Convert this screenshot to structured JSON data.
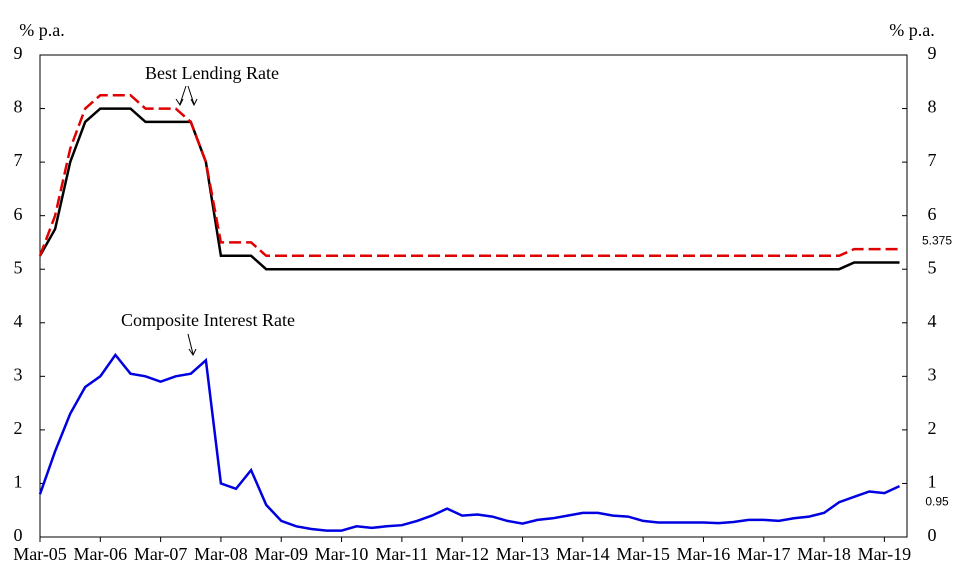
{
  "chart_data": {
    "type": "line",
    "annotations": [
      "Best Lending Rate",
      "Composite Interest Rate"
    ],
    "y_label": "% p.a.",
    "y2_label": "% p.a.",
    "categories": [
      "Mar-05",
      null,
      null,
      null,
      "Mar-06",
      null,
      null,
      null,
      "Mar-07",
      null,
      null,
      null,
      "Mar-08",
      null,
      null,
      null,
      "Mar-09",
      null,
      null,
      null,
      "Mar-10",
      null,
      null,
      null,
      "Mar-11",
      null,
      null,
      null,
      "Mar-12",
      null,
      null,
      null,
      "Mar-13",
      null,
      null,
      null,
      "Mar-14",
      null,
      null,
      null,
      "Mar-15",
      null,
      null,
      null,
      "Mar-16",
      null,
      null,
      null,
      "Mar-17",
      null,
      null,
      null,
      "Mar-18",
      null,
      null,
      null,
      "Mar-19",
      null
    ],
    "ylim": [
      0,
      9
    ],
    "yticks": [
      0,
      1,
      2,
      3,
      4,
      5,
      6,
      7,
      8,
      9
    ],
    "y2lim": [
      0,
      9
    ],
    "y2ticks": [
      0,
      1,
      2,
      3,
      4,
      5,
      6,
      7,
      8,
      9
    ],
    "series": [
      {
        "color": "#000000",
        "dashed": false,
        "label_last": false,
        "values": [
          5.25,
          5.75,
          7.0,
          7.75,
          8,
          8,
          8,
          7.75,
          7.75,
          7.75,
          7.75,
          7.0,
          5.25,
          5.25,
          5.25,
          5,
          5,
          5,
          5,
          5,
          5,
          5,
          5,
          5,
          5,
          5,
          5,
          5,
          5,
          5,
          5,
          5,
          5,
          5,
          5,
          5,
          5,
          5,
          5,
          5,
          5,
          5,
          5,
          5,
          5,
          5,
          5,
          5,
          5,
          5,
          5,
          5,
          5,
          5,
          5.125,
          5.125,
          5.125,
          5.125
        ]
      },
      {
        "color": "#e00000",
        "dashed": true,
        "label_last": true,
        "values": [
          5.25,
          6,
          7.25,
          8,
          8.25,
          8.25,
          8.25,
          8,
          8,
          8,
          7.75,
          7,
          5.5,
          5.5,
          5.5,
          5.25,
          5.25,
          5.25,
          5.25,
          5.25,
          5.25,
          5.25,
          5.25,
          5.25,
          5.25,
          5.25,
          5.25,
          5.25,
          5.25,
          5.25,
          5.25,
          5.25,
          5.25,
          5.25,
          5.25,
          5.25,
          5.25,
          5.25,
          5.25,
          5.25,
          5.25,
          5.25,
          5.25,
          5.25,
          5.25,
          5.25,
          5.25,
          5.25,
          5.25,
          5.25,
          5.25,
          5.25,
          5.25,
          5.25,
          5.375,
          5.375,
          5.375,
          5.375
        ]
      },
      {
        "color": "#0000e0",
        "dashed": false,
        "label_last": true,
        "values": [
          0.8,
          1.6,
          2.3,
          2.8,
          3.0,
          3.4,
          3.05,
          3.0,
          2.9,
          3.0,
          3.05,
          3.3,
          1.0,
          0.9,
          1.25,
          0.6,
          0.3,
          0.2,
          0.15,
          0.12,
          0.12,
          0.2,
          0.17,
          0.2,
          0.22,
          0.3,
          0.4,
          0.53,
          0.4,
          0.42,
          0.38,
          0.3,
          0.25,
          0.32,
          0.35,
          0.4,
          0.45,
          0.45,
          0.4,
          0.38,
          0.3,
          0.27,
          0.27,
          0.27,
          0.27,
          0.26,
          0.28,
          0.32,
          0.32,
          0.3,
          0.35,
          0.38,
          0.45,
          0.65,
          0.75,
          0.85,
          0.82,
          0.95
        ]
      }
    ]
  }
}
